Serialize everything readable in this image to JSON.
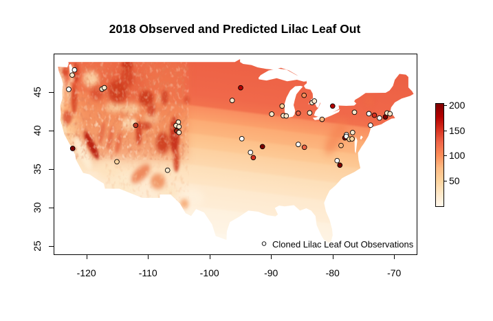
{
  "title": "2018 Observed and Predicted Lilac Leaf Out",
  "axes": {
    "x_ticks": [
      -120,
      -110,
      -100,
      -90,
      -80,
      -70
    ],
    "y_ticks": [
      25,
      30,
      35,
      40,
      45
    ],
    "xlim": [
      -125.33,
      -66.45
    ],
    "ylim": [
      24.02,
      50.0
    ]
  },
  "colorbar": {
    "ticks": [
      50,
      100,
      150,
      200
    ],
    "vmin": 0,
    "vmax": 203,
    "palette": [
      "#FFF7EC",
      "#FEE8C8",
      "#FDD49E",
      "#FDBB84",
      "#FC8D59",
      "#EF6548",
      "#D7301F",
      "#B30000",
      "#7F0000"
    ]
  },
  "legend": {
    "label": "Cloned Lilac Leaf Out Observations"
  },
  "chart_data": {
    "type": "map-scatter",
    "region": "contiguous United States",
    "raster": "predicted lilac leaf out day of year (low=cream ~0, high=dark red ~200)",
    "points": [
      {
        "lon": -122.05,
        "lat": 47.97,
        "fill": "#FFFFFF"
      },
      {
        "lon": -122.42,
        "lat": 47.3,
        "fill": "#FAE8CC"
      },
      {
        "lon": -122.98,
        "lat": 45.45,
        "fill": "#FFFFFF"
      },
      {
        "lon": -117.59,
        "lat": 45.48,
        "fill": "#FAE8CC"
      },
      {
        "lon": -117.21,
        "lat": 45.66,
        "fill": "#FAE8CC"
      },
      {
        "lon": -112.11,
        "lat": 40.78,
        "fill": "#C43B28"
      },
      {
        "lon": -122.35,
        "lat": 37.77,
        "fill": "#7F0000"
      },
      {
        "lon": -115.16,
        "lat": 36.05,
        "fill": "#FDD49E"
      },
      {
        "lon": -106.93,
        "lat": 34.94,
        "fill": "#FAE8CC"
      },
      {
        "lon": -105.18,
        "lat": 41.19,
        "fill": "#FAE8CC"
      },
      {
        "lon": -105.55,
        "lat": 40.74,
        "fill": "#FAE8CC"
      },
      {
        "lon": -105.07,
        "lat": 40.6,
        "fill": "#FAE8CC"
      },
      {
        "lon": -105.44,
        "lat": 40.06,
        "fill": "#A02E1D"
      },
      {
        "lon": -105.07,
        "lat": 39.85,
        "fill": "#FAE8CC"
      },
      {
        "lon": -95.05,
        "lat": 45.65,
        "fill": "#B30000"
      },
      {
        "lon": -96.43,
        "lat": 44.01,
        "fill": "#FAE8CC"
      },
      {
        "lon": -94.86,
        "lat": 39.04,
        "fill": "#FFFFFF"
      },
      {
        "lon": -91.51,
        "lat": 38.01,
        "fill": "#7F0000"
      },
      {
        "lon": -93.45,
        "lat": 37.26,
        "fill": "#FFFFFF"
      },
      {
        "lon": -93.0,
        "lat": 36.58,
        "fill": "#D7301F"
      },
      {
        "lon": -84.75,
        "lat": 44.67,
        "fill": "#FC8D59"
      },
      {
        "lon": -83.44,
        "lat": 43.72,
        "fill": "#FAE8CC"
      },
      {
        "lon": -83.07,
        "lat": 43.93,
        "fill": "#FAE8CC"
      },
      {
        "lon": -88.32,
        "lat": 43.28,
        "fill": "#FDD49E"
      },
      {
        "lon": -90.0,
        "lat": 42.23,
        "fill": "#FAE8CC"
      },
      {
        "lon": -88.13,
        "lat": 42.03,
        "fill": "#FAE8CC"
      },
      {
        "lon": -87.65,
        "lat": 41.99,
        "fill": "#FAE8CC"
      },
      {
        "lon": -80.1,
        "lat": 43.28,
        "fill": "#B30000"
      },
      {
        "lon": -85.69,
        "lat": 42.35,
        "fill": "#EF6548"
      },
      {
        "lon": -83.83,
        "lat": 42.39,
        "fill": "#FAE8CC"
      },
      {
        "lon": -81.82,
        "lat": 41.55,
        "fill": "#FDBB84"
      },
      {
        "lon": -85.69,
        "lat": 38.3,
        "fill": "#FFFFFF"
      },
      {
        "lon": -84.69,
        "lat": 37.92,
        "fill": "#EF6548"
      },
      {
        "lon": -76.56,
        "lat": 42.47,
        "fill": "#FAE8CC"
      },
      {
        "lon": -74.21,
        "lat": 42.29,
        "fill": "#FFFFFF"
      },
      {
        "lon": -73.32,
        "lat": 42.08,
        "fill": "#D7301F"
      },
      {
        "lon": -72.49,
        "lat": 41.72,
        "fill": "#FFFFFF"
      },
      {
        "lon": -71.53,
        "lat": 41.87,
        "fill": "#7F0000"
      },
      {
        "lon": -71.26,
        "lat": 42.37,
        "fill": "#FAE8CC"
      },
      {
        "lon": -70.78,
        "lat": 42.28,
        "fill": "#FAE8CC"
      },
      {
        "lon": -73.95,
        "lat": 40.79,
        "fill": "#FFFFFF"
      },
      {
        "lon": -76.86,
        "lat": 39.84,
        "fill": "#FAE8CC"
      },
      {
        "lon": -77.87,
        "lat": 39.55,
        "fill": "#FFFFFF"
      },
      {
        "lon": -78.11,
        "lat": 39.15,
        "fill": "#7F0000"
      },
      {
        "lon": -77.89,
        "lat": 39.33,
        "fill": "#FFFFFF"
      },
      {
        "lon": -77.39,
        "lat": 38.97,
        "fill": "#FDD49E"
      },
      {
        "lon": -76.95,
        "lat": 39.02,
        "fill": "#FDD49E"
      },
      {
        "lon": -78.74,
        "lat": 38.15,
        "fill": "#FDBB84"
      },
      {
        "lon": -79.38,
        "lat": 36.19,
        "fill": "#FFFFFF"
      },
      {
        "lon": -78.93,
        "lat": 35.6,
        "fill": "#7F0000"
      }
    ]
  }
}
